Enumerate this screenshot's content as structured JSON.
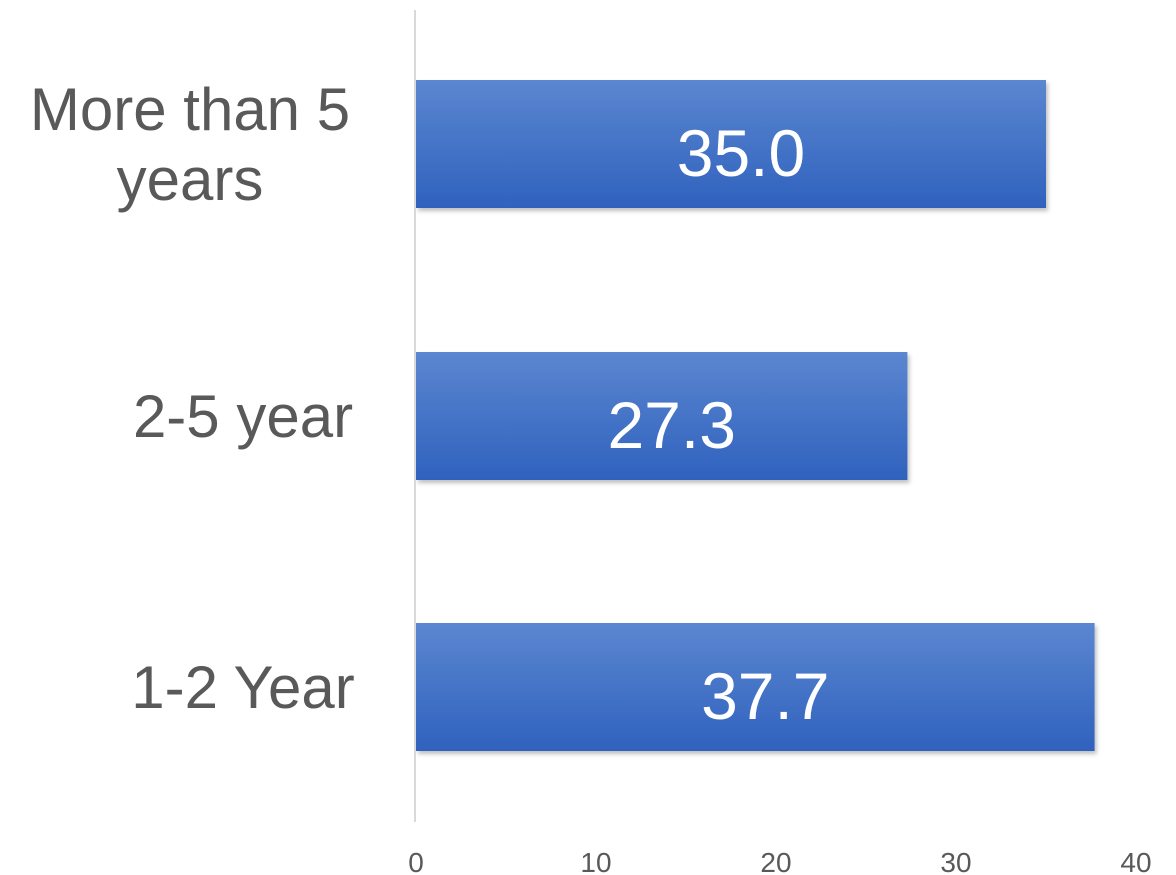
{
  "chart_data": {
    "type": "bar",
    "orientation": "horizontal",
    "categories": [
      "More than 5 years",
      "2-5 year",
      "1-2 Year"
    ],
    "category_label_lines": [
      [
        "More than 5",
        "years"
      ],
      [
        "2-5 year"
      ],
      [
        "1-2 Year"
      ]
    ],
    "values": [
      35.0,
      27.3,
      37.7
    ],
    "data_labels": [
      "35.0",
      "27.3",
      "37.7"
    ],
    "xlim": [
      0,
      40
    ],
    "xticks": [
      0,
      10,
      20,
      30,
      40
    ],
    "tick_labels": [
      "0",
      "10",
      "20",
      "30",
      "40"
    ],
    "title": "",
    "xlabel": "",
    "ylabel": "",
    "grid": false,
    "legend": "none",
    "colors": {
      "bar_top": "#5b86d0",
      "bar_bottom": "#2f62be",
      "axis": "#d9d9d9",
      "text": "#595959",
      "data_label": "#ffffff"
    }
  }
}
